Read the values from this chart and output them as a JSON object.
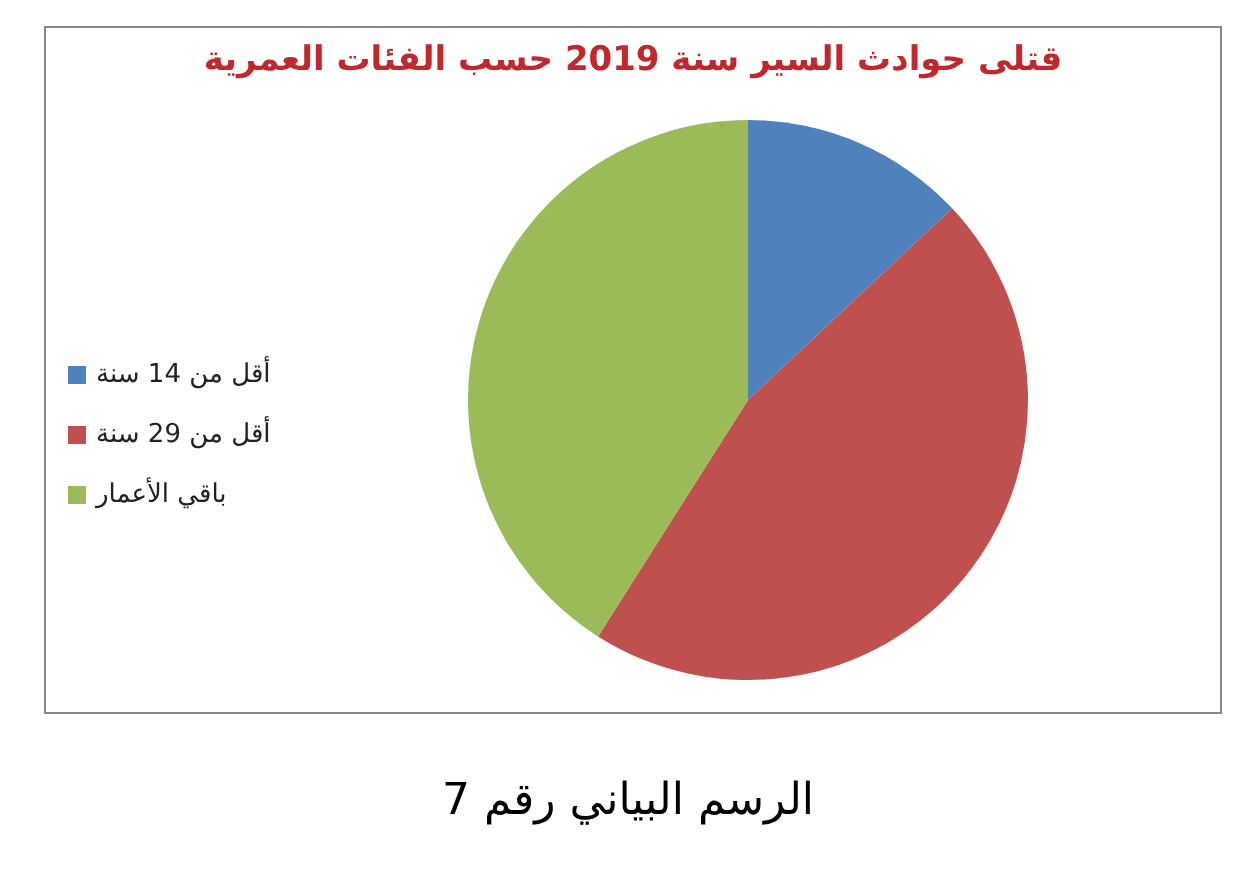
{
  "chart_data": {
    "type": "pie",
    "title": "قتلى حوادث السير سنة 2019 حسب الفئات العمرية",
    "categories": [
      "أقل من 14 سنة",
      "أقل من 29 سنة",
      "باقي الأعمار"
    ],
    "values": [
      13,
      46,
      41
    ],
    "colors": [
      "#4f81bd",
      "#c0504d",
      "#9bbb59"
    ],
    "legend": "left",
    "annotations": [
      "الرسم البياني رقم 7"
    ]
  }
}
